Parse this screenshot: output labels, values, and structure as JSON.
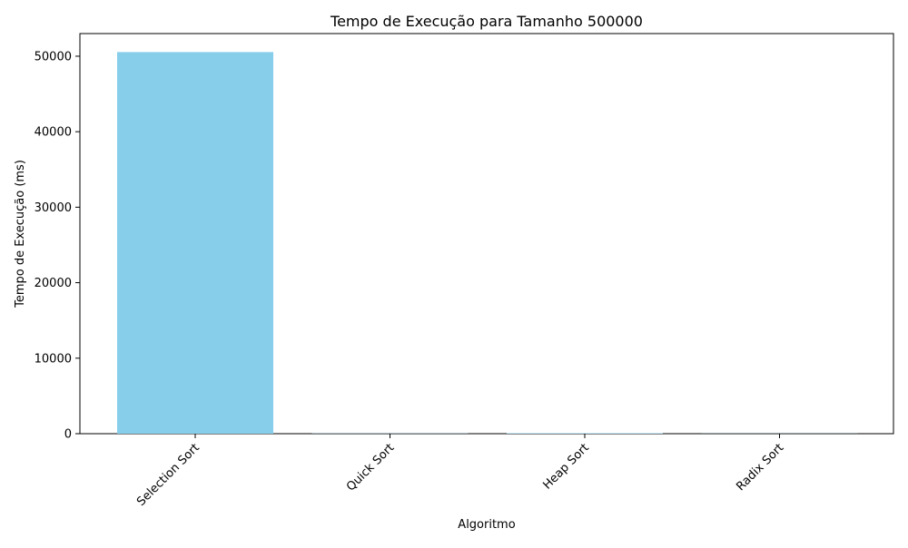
{
  "chart_data": {
    "type": "bar",
    "title": "Tempo de Execução para Tamanho 500000",
    "xlabel": "Algoritmo",
    "ylabel": "Tempo de Execução (ms)",
    "categories": [
      "Selection Sort",
      "Quick Sort",
      "Heap Sort",
      "Radix Sort"
    ],
    "values": [
      50550,
      30,
      60,
      15
    ],
    "ylim": [
      0,
      53000
    ],
    "yticks": [
      0,
      10000,
      20000,
      30000,
      40000,
      50000
    ],
    "bar_color": "#87ceeb",
    "grid": false,
    "legend": "none",
    "xtick_rotation": 45
  }
}
